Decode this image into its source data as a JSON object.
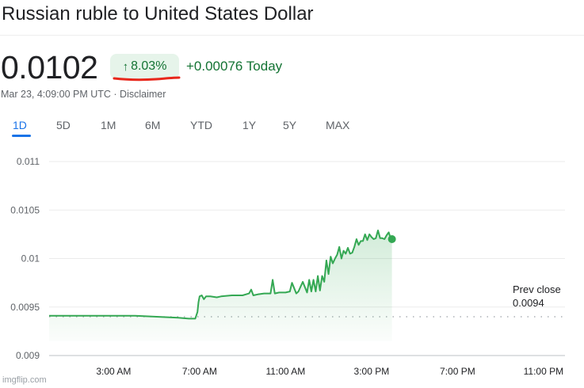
{
  "header": {
    "title": "Russian ruble to United States Dollar",
    "price": "0.0102",
    "change_arrow": "↑",
    "change_pct": "8.03%",
    "change_abs": "+0.00076 Today",
    "timestamp": "Mar 23, 4:09:00 PM UTC · Disclaimer"
  },
  "tabs": [
    "1D",
    "5D",
    "1M",
    "6M",
    "YTD",
    "1Y",
    "5Y",
    "MAX"
  ],
  "active_tab": "1D",
  "colors": {
    "line": "#34a853",
    "positive_text": "#137333",
    "badge_bg": "#e6f4ea",
    "active_tab": "#1a73e8",
    "annotation_underline": "#e8271b"
  },
  "watermark": "imgflip.com",
  "chart_data": {
    "type": "line",
    "title": "",
    "xlabel": "",
    "ylabel": "",
    "ylim": [
      0.009,
      0.011
    ],
    "y_ticks": [
      "0.011",
      "0.0105",
      "0.01",
      "0.0095",
      "0.009"
    ],
    "y_tick_values": [
      0.011,
      0.0105,
      0.01,
      0.0095,
      0.009
    ],
    "x_ticks": [
      "3:00 AM",
      "7:00 AM",
      "11:00 AM",
      "3:00 PM",
      "7:00 PM",
      "11:00 PM"
    ],
    "x_tick_hours": [
      3,
      7,
      11,
      15,
      19,
      23
    ],
    "xlim_hours": [
      0,
      24
    ],
    "grid": true,
    "prev_close": {
      "label": "Prev close",
      "value": "0.0094",
      "y": 0.0094
    },
    "series": [
      {
        "x_hours": [
          0,
          1,
          2,
          3,
          4,
          5,
          6,
          6.5,
          6.8,
          6.9,
          6.95,
          7.0,
          7.1,
          7.2,
          7.3,
          7.5,
          7.8,
          8.0,
          8.5,
          9.0,
          9.3,
          9.4,
          9.5,
          9.7,
          10.0,
          10.3,
          10.4,
          10.5,
          10.7,
          11.0,
          11.2,
          11.3,
          11.5,
          11.6,
          11.8,
          12.0,
          12.1,
          12.2,
          12.3,
          12.4,
          12.5,
          12.6,
          12.7,
          12.8,
          12.9,
          13.0,
          13.1,
          13.2,
          13.3,
          13.4,
          13.5,
          13.6,
          13.7,
          13.8,
          13.9,
          14.0,
          14.1,
          14.2,
          14.3,
          14.4,
          14.5,
          14.6,
          14.7,
          14.8,
          14.9,
          15.0,
          15.1,
          15.2,
          15.3,
          15.4,
          15.5,
          15.6,
          15.7,
          15.8,
          15.9,
          15.95
        ],
        "y": [
          0.00941,
          0.00941,
          0.00941,
          0.00941,
          0.00941,
          0.0094,
          0.00939,
          0.00938,
          0.00938,
          0.00945,
          0.00955,
          0.00961,
          0.00962,
          0.00958,
          0.00961,
          0.00961,
          0.0096,
          0.00961,
          0.00962,
          0.00962,
          0.00964,
          0.00968,
          0.00962,
          0.00963,
          0.00964,
          0.00964,
          0.00978,
          0.00964,
          0.00965,
          0.00965,
          0.00966,
          0.00975,
          0.00964,
          0.00966,
          0.00976,
          0.00965,
          0.00978,
          0.00966,
          0.00978,
          0.00966,
          0.00982,
          0.00967,
          0.00982,
          0.00976,
          0.00998,
          0.00984,
          0.01002,
          0.00995,
          0.01,
          0.01004,
          0.01012,
          0.01,
          0.01008,
          0.01005,
          0.01011,
          0.01005,
          0.01006,
          0.01012,
          0.0102,
          0.01014,
          0.01018,
          0.01018,
          0.01025,
          0.01019,
          0.01025,
          0.01022,
          0.0102,
          0.01021,
          0.01029,
          0.01021,
          0.01021,
          0.0102,
          0.01024,
          0.01027,
          0.0102,
          0.0102
        ]
      }
    ],
    "last_point": {
      "x_hours": 15.95,
      "y": 0.0102
    }
  }
}
